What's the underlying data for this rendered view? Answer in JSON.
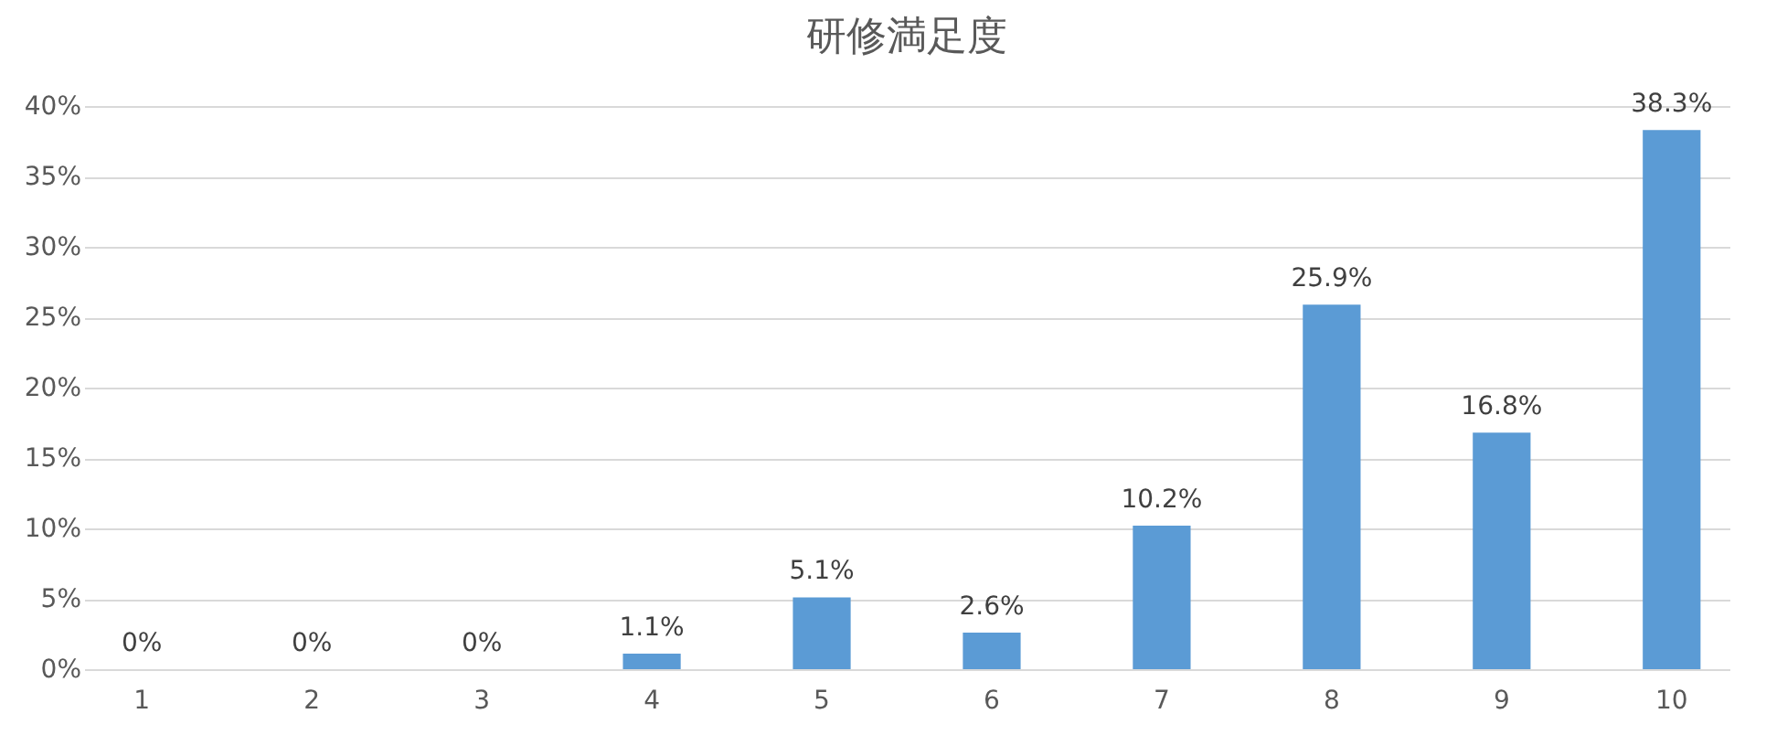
{
  "chart_data": {
    "type": "bar",
    "title": "研修満足度",
    "categories": [
      "1",
      "2",
      "3",
      "4",
      "5",
      "6",
      "7",
      "8",
      "9",
      "10"
    ],
    "values": [
      0,
      0,
      0,
      1.1,
      5.1,
      2.6,
      10.2,
      25.9,
      16.8,
      38.3
    ],
    "value_labels": [
      "0%",
      "0%",
      "0%",
      "1.1%",
      "5.1%",
      "2.6%",
      "10.2%",
      "25.9%",
      "16.8%",
      "38.3%"
    ],
    "color": "#5b9bd5",
    "ylim": [
      0,
      40
    ],
    "yticks": [
      {
        "value": 0,
        "label": "0%"
      },
      {
        "value": 5,
        "label": "5%"
      },
      {
        "value": 10,
        "label": "10%"
      },
      {
        "value": 15,
        "label": "15%"
      },
      {
        "value": 20,
        "label": "20%"
      },
      {
        "value": 25,
        "label": "25%"
      },
      {
        "value": 30,
        "label": "30%"
      },
      {
        "value": 35,
        "label": "35%"
      },
      {
        "value": 40,
        "label": "40%"
      }
    ],
    "grid": "y"
  }
}
